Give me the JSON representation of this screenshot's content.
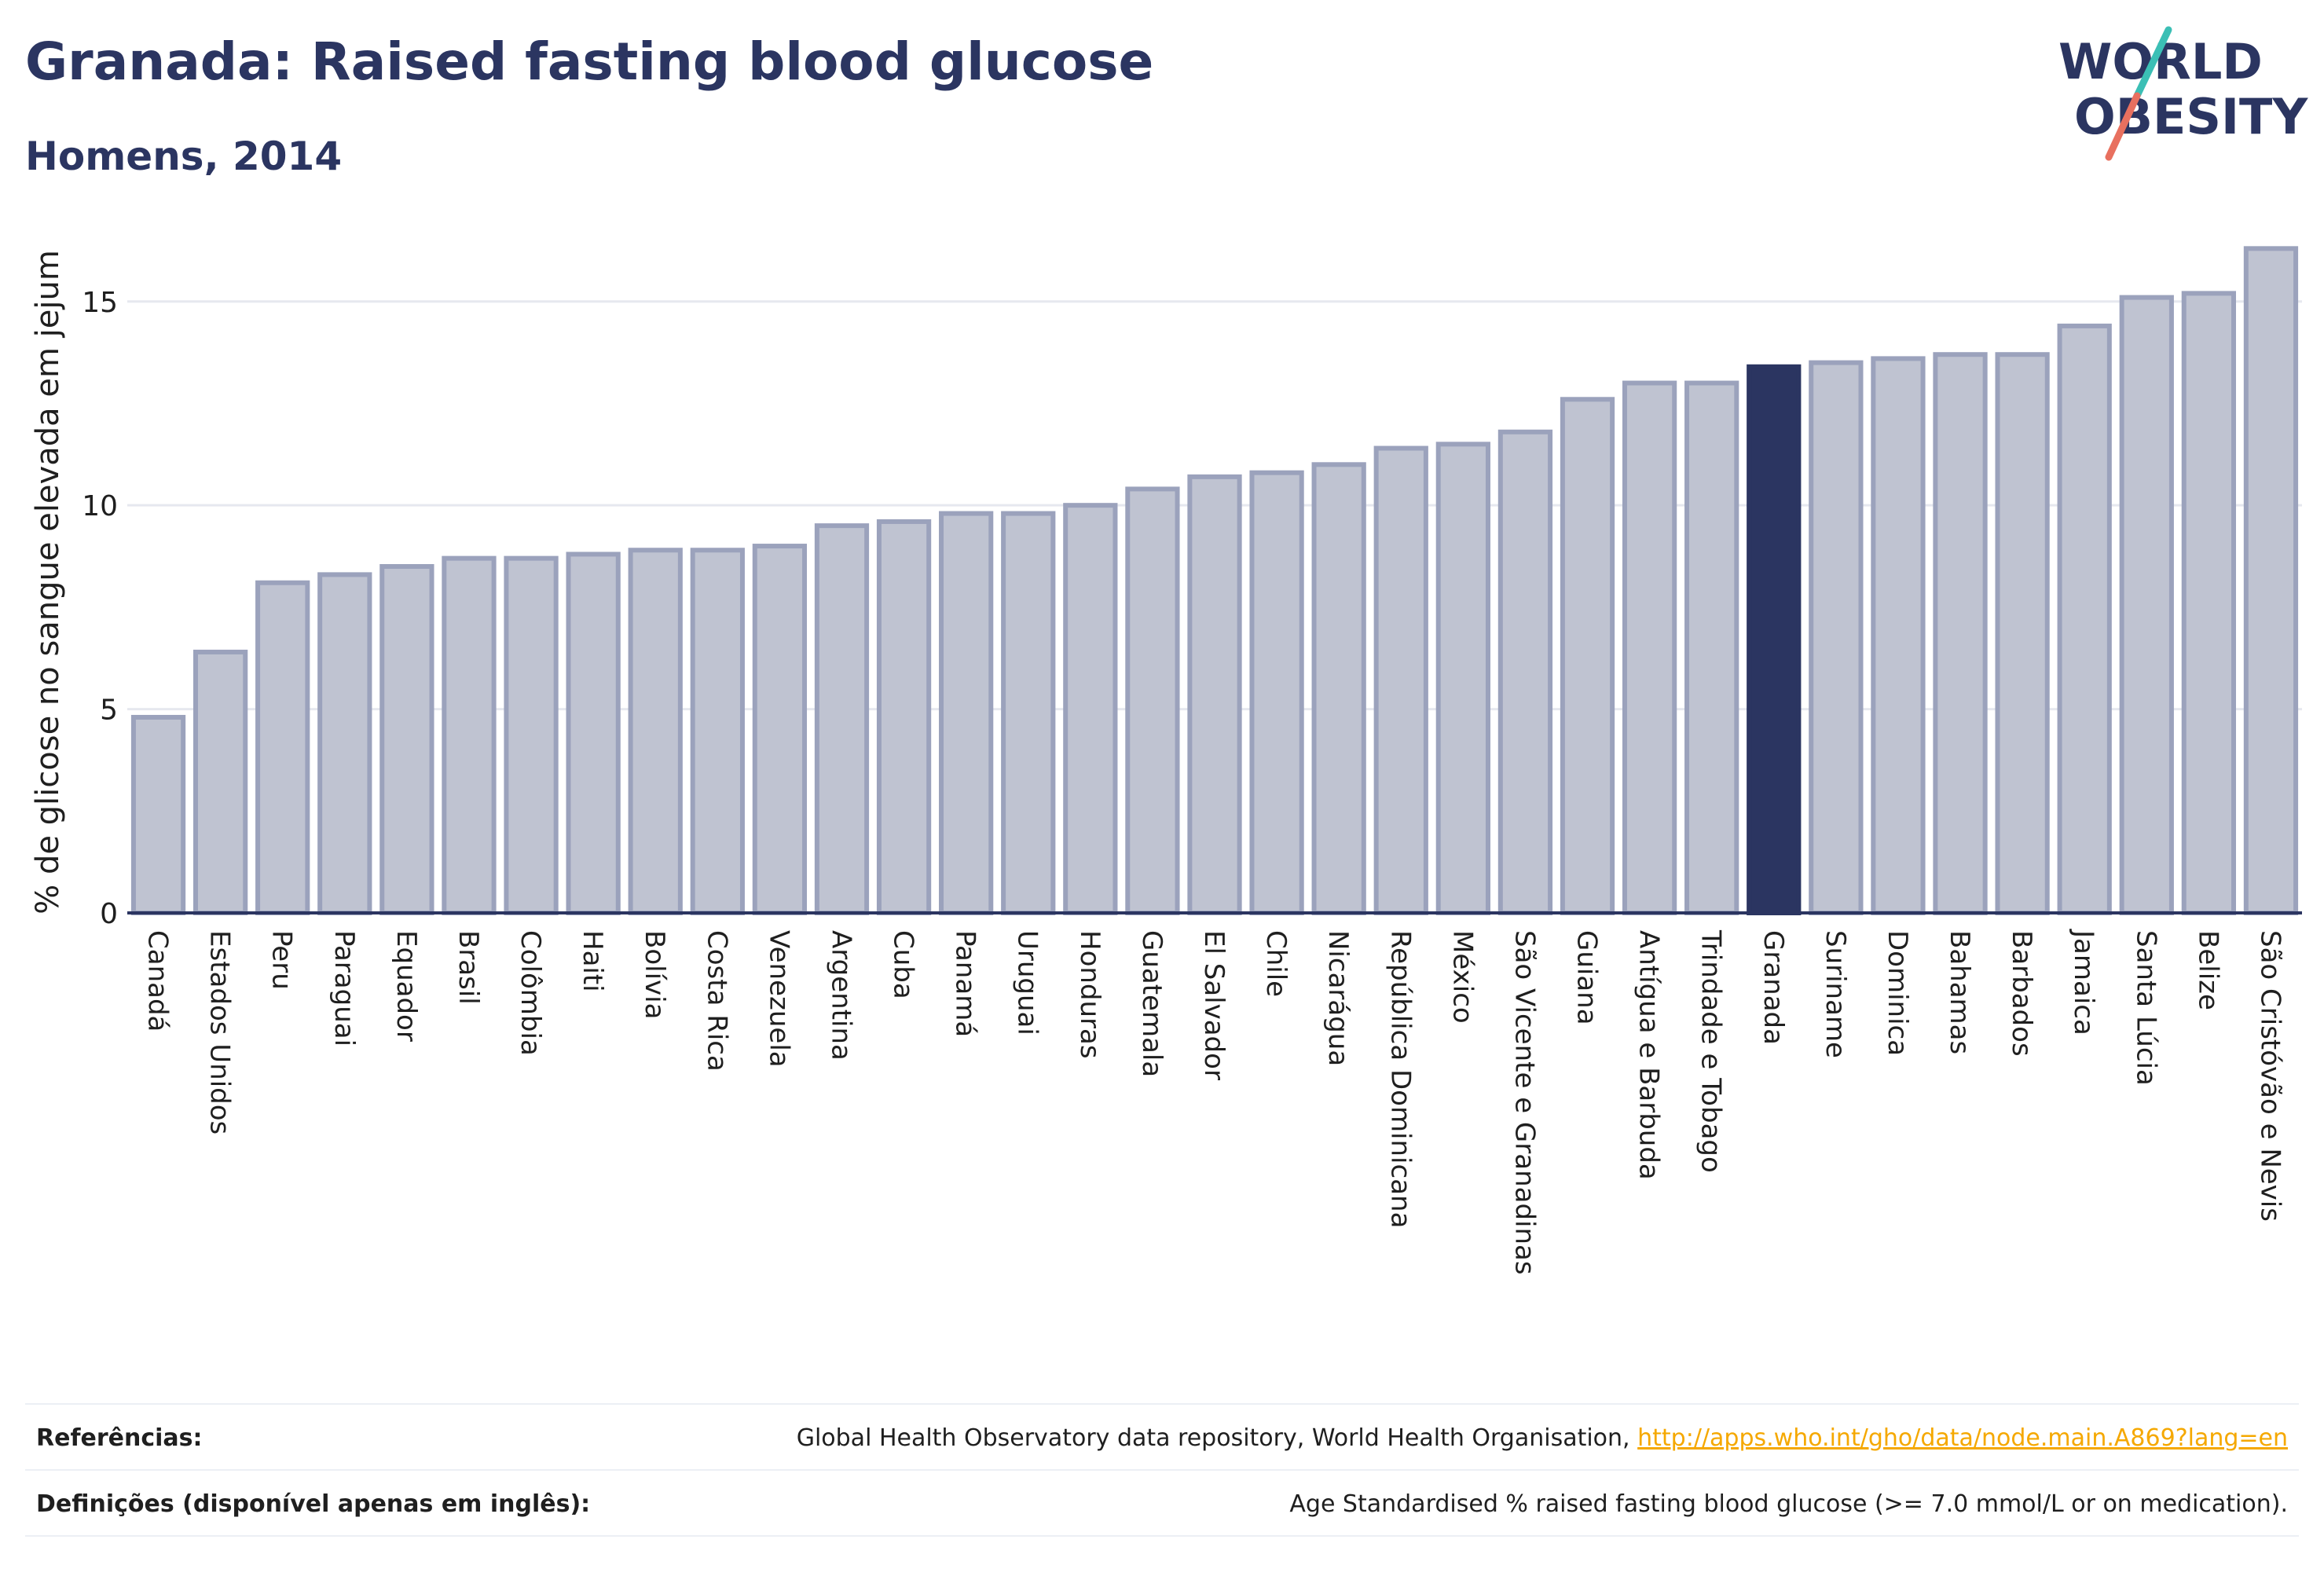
{
  "header": {
    "title": "Granada: Raised fasting blood glucose",
    "subtitle": "Homens, 2014"
  },
  "logo": {
    "line1": "WORLD",
    "line2": "OBESITY"
  },
  "chart_data": {
    "type": "bar",
    "ylabel": "% de glicose no sangue elevada em jejum",
    "ylim": [
      0,
      17
    ],
    "yticks": [
      0,
      5,
      10,
      15
    ],
    "grid": true,
    "highlight": "Granada",
    "colors": {
      "bar": "#bfc3d1",
      "bar_stroke": "#9ba2bc",
      "highlight": "#2b3561",
      "axis": "#2b3561",
      "grid": "#e6e8ef"
    },
    "categories": [
      "Canadá",
      "Estados Unidos",
      "Peru",
      "Paraguai",
      "Equador",
      "Brasil",
      "Colômbia",
      "Haiti",
      "Bolívia",
      "Costa Rica",
      "Venezuela",
      "Argentina",
      "Cuba",
      "Panamá",
      "Uruguai",
      "Honduras",
      "Guatemala",
      "El Salvador",
      "Chile",
      "Nicarágua",
      "República Dominicana",
      "México",
      "São Vicente e Granadinas",
      "Guiana",
      "Antígua e Barbuda",
      "Trindade e Tobago",
      "Granada",
      "Suriname",
      "Dominica",
      "Bahamas",
      "Barbados",
      "Jamaica",
      "Santa Lúcia",
      "Belize",
      "São Cristóvão e Nevis"
    ],
    "values": [
      4.8,
      6.4,
      8.1,
      8.3,
      8.5,
      8.7,
      8.7,
      8.8,
      8.9,
      8.9,
      9.0,
      9.5,
      9.6,
      9.8,
      9.8,
      10.0,
      10.4,
      10.7,
      10.8,
      11.0,
      11.4,
      11.5,
      11.8,
      12.6,
      13.0,
      13.0,
      13.4,
      13.5,
      13.6,
      13.7,
      13.7,
      14.4,
      15.1,
      15.2,
      16.3
    ]
  },
  "footer": {
    "references_label": "Referências:",
    "references_text": "Global Health Observatory data repository, World Health Organisation,",
    "references_link": "http://apps.who.int/gho/data/node.main.A869?lang=en",
    "definitions_label": "Definições (disponível apenas em inglês):",
    "definitions_text": "Age Standardised % raised fasting blood glucose (>= 7.0 mmol/L or on medication)."
  }
}
